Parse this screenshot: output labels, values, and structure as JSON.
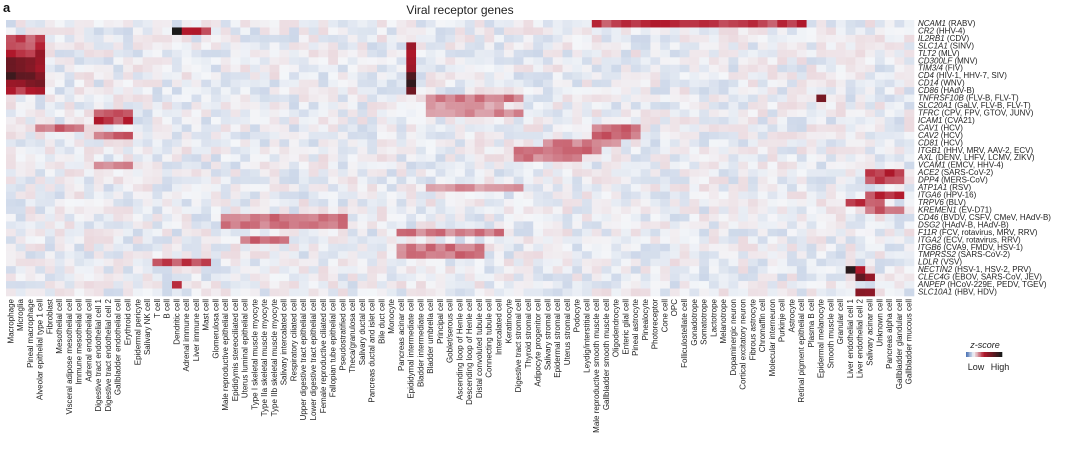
{
  "panel_letter": "a",
  "chart_data": {
    "type": "heatmap",
    "title": "Viral receptor genes",
    "rows": [
      {
        "gene": "NCAM1",
        "virus": " (RABV)"
      },
      {
        "gene": "CR2",
        "virus": " (HHV-4)"
      },
      {
        "gene": "IL2RB1",
        "virus": " (CDV)"
      },
      {
        "gene": "SLC1A1",
        "virus": " (SINV)"
      },
      {
        "gene": "TLT2",
        "virus": " (MLV)"
      },
      {
        "gene": "CD300LF",
        "virus": " (MNV)"
      },
      {
        "gene": "TIM3/4",
        "virus": " (FIV)"
      },
      {
        "gene": "CD4",
        "virus": " (HIV-1, HHV-7, SIV)"
      },
      {
        "gene": "CD14",
        "virus": " (WNV)"
      },
      {
        "gene": "CD86",
        "virus": " (HAdV-B)"
      },
      {
        "gene": "TNFRSF10B",
        "virus": " (FLV-B, FLV-T)"
      },
      {
        "gene": "SLC20A1",
        "virus": " (GaLV, FLV-B, FLV-T)"
      },
      {
        "gene": "TFRC",
        "virus": " (CPV, FPV, GTOV, JUNV)"
      },
      {
        "gene": "ICAM1",
        "virus": " (CVA21)"
      },
      {
        "gene": "CAV1",
        "virus": " (HCV)"
      },
      {
        "gene": "CAV2",
        "virus": " (HCV)"
      },
      {
        "gene": "CD81",
        "virus": " (HCV)"
      },
      {
        "gene": "ITGB1",
        "virus": " (HHV, MRV, AAV-2, ECV)"
      },
      {
        "gene": "AXL",
        "virus": " (DENV, LHFV, LCMV, ZIKV)"
      },
      {
        "gene": "VCAM1",
        "virus": " (EMCV, HHV-4)"
      },
      {
        "gene": "ACE2",
        "virus": " (SARS-CoV-2)"
      },
      {
        "gene": "DPP4",
        "virus": " (MERS-CoV)"
      },
      {
        "gene": "ATP1A1",
        "virus": " (RSV)"
      },
      {
        "gene": "ITGA6",
        "virus": " (HPV-16)"
      },
      {
        "gene": "TRPV6",
        "virus": " (BLV)"
      },
      {
        "gene": "KREMEN1",
        "virus": " (EV-D71)"
      },
      {
        "gene": "CD46",
        "virus": " (BVDV, CSFV, CMeV, HAdV-B)"
      },
      {
        "gene": "DSG2",
        "virus": " (HAdV-B, HAdV-B)"
      },
      {
        "gene": "F11R",
        "virus": " (FCV, rotavirus, MRV, RRV)"
      },
      {
        "gene": "ITGA2",
        "virus": " (ECV, rotavirus, RRV)"
      },
      {
        "gene": "ITGB6",
        "virus": " (CVA9, FMDV, HSV-1)"
      },
      {
        "gene": "TMPRSS2",
        "virus": " (SARS-CoV-2)"
      },
      {
        "gene": "LDLR",
        "virus": " (VSV)"
      },
      {
        "gene": "NECTIN2",
        "virus": " (HSV-1, HSV-2, PRV)"
      },
      {
        "gene": "CLEC4G",
        "virus": " (EBOV, SARS-CoV, JEV)"
      },
      {
        "gene": "ANPEP",
        "virus": " (HCoV-229E, PEDV, TGEV)"
      },
      {
        "gene": "SLC10A1",
        "virus": " (HBV, HDV)"
      }
    ],
    "columns": [
      "Macrophage",
      "Microglia",
      "Pineal macrophage",
      "Alveolar epithelial type 1 cell",
      "Fibroblast",
      "Mesothelial cell",
      "Visceral adipose mesothelial cell",
      "Immune mesothelial cell",
      "Adrenal endothelial cell",
      "Digestive tract endothelial cell 1",
      "Digestive tract endothelial cell 2",
      "Gallbladder endothelial cell",
      "Erythroid cell",
      "Epidermal pericyte",
      "Salivary NK cell",
      "T cell",
      "B cell",
      "Dendritic cell",
      "Adrenal immune cell",
      "Liver immune cell",
      "Mast cell",
      "Glomerulosa cell",
      "Male reproductive epithelial cell",
      "Epididymis stereociliated cell",
      "Uterus luminal epithelial cell",
      "Type I skeletal muscle myocyte",
      "Type IIa skeletal muscle myocyte",
      "Type IIb skeletal muscle myocyte",
      "Salivary intercalated cell",
      "Respiratory ciliated cell",
      "Upper digestive tract epithelial cell",
      "Lower digestive tract epithelial cell",
      "Female reproductive ciliated cell",
      "Fallopian tube epithelial cell",
      "Pseudostratified cell",
      "Theca/granulosa cell",
      "Salivary ductal cell",
      "Pancreas ductal and islet cell",
      "Bile duct cell",
      "Monocyte",
      "Pancreas acinar cell",
      "Epididymal intermediate cell",
      "Bladder intermediate cell",
      "Bladder umbrella cell",
      "Principal cell",
      "Goblet/serous cell",
      "Ascending loop of Henle cell",
      "Descending loop of Henle cell",
      "Distal convoluted tubule cell",
      "Connecting tubule cell",
      "Intercalated cell",
      "Keratinocyte",
      "Digestive tract stromal cell",
      "Thyroid stromal cell",
      "Adipocyte progenitor cell",
      "Salivary stromal cell",
      "Epidermal stromal cell",
      "Uterus stromal cell",
      "Podocyte",
      "Leydig/interstitial cell",
      "Male reproductive smooth muscle cell",
      "Gallbladder smooth muscle cell",
      "Oligodendrocyte",
      "Enteric glial cell",
      "Pineal astrocyte",
      "Pinealocyte",
      "Photoreceptor",
      "Cone cell",
      "OPC",
      "Folliculostellate cell",
      "Gonadotrope",
      "Somatotrope",
      "Lactotrope",
      "Melanotrope",
      "Dopaminergic neuron",
      "Cortical excitatory neuron",
      "Fibrous astrocyte",
      "Chromaffin cell",
      "Molecular interneuron",
      "Purkinje cell",
      "Astrocyte",
      "Retinal pigment epithelial cell",
      "Plasma B cell",
      "Epidermal melanocyte",
      "Smooth muscle cell",
      "Granular cell",
      "Liver endothelial cell 1",
      "Liver endothelial cell 2",
      "Salivary acinar cell",
      "Unknown cell",
      "Pancreas alpha cell",
      "Gallbladder glandular cell",
      "Gallbladder mucous cell"
    ],
    "color_scale": {
      "title": "z-score",
      "low_label": "Low",
      "high_label": "High",
      "low_color": "#2b5aa8",
      "mid_color": "#f4f6f9",
      "high_color": "#b2182b",
      "max_color": "#1a1a1a"
    },
    "z_range": [
      -2,
      8
    ],
    "hotspots": [
      [
        0,
        60,
        81,
        2.6
      ],
      [
        1,
        17,
        17,
        6.5
      ],
      [
        1,
        18,
        20,
        2.5
      ],
      [
        2,
        0,
        3,
        2.2
      ],
      [
        3,
        0,
        3,
        2.3
      ],
      [
        3,
        41,
        41,
        3.5
      ],
      [
        4,
        0,
        3,
        3.2
      ],
      [
        4,
        41,
        41,
        3.0
      ],
      [
        5,
        0,
        3,
        4.8
      ],
      [
        5,
        41,
        41,
        3.5
      ],
      [
        6,
        0,
        3,
        4.5
      ],
      [
        6,
        41,
        41,
        4.0
      ],
      [
        7,
        0,
        3,
        5.5
      ],
      [
        7,
        41,
        41,
        6.0
      ],
      [
        8,
        0,
        3,
        4.2
      ],
      [
        8,
        41,
        41,
        7.0
      ],
      [
        9,
        0,
        3,
        2.8
      ],
      [
        9,
        41,
        41,
        5.0
      ],
      [
        10,
        43,
        52,
        1.6
      ],
      [
        10,
        83,
        83,
        6.0
      ],
      [
        11,
        43,
        50,
        1.2
      ],
      [
        12,
        9,
        12,
        2.3
      ],
      [
        12,
        43,
        52,
        1.4
      ],
      [
        13,
        9,
        12,
        2.5
      ],
      [
        14,
        3,
        7,
        1.8
      ],
      [
        14,
        60,
        64,
        1.8
      ],
      [
        15,
        9,
        12,
        2.0
      ],
      [
        15,
        60,
        64,
        1.9
      ],
      [
        16,
        55,
        62,
        1.6
      ],
      [
        17,
        52,
        60,
        1.7
      ],
      [
        18,
        52,
        58,
        1.6
      ],
      [
        19,
        9,
        12,
        1.5
      ],
      [
        20,
        88,
        91,
        2.8
      ],
      [
        21,
        88,
        91,
        2.2
      ],
      [
        22,
        43,
        52,
        1.3
      ],
      [
        23,
        88,
        91,
        2.5
      ],
      [
        24,
        86,
        89,
        2.4
      ],
      [
        25,
        88,
        91,
        2.0
      ],
      [
        26,
        22,
        34,
        1.7
      ],
      [
        27,
        22,
        34,
        1.6
      ],
      [
        28,
        40,
        50,
        1.6
      ],
      [
        29,
        24,
        28,
        2.0
      ],
      [
        30,
        40,
        48,
        1.7
      ],
      [
        31,
        40,
        48,
        1.8
      ],
      [
        32,
        15,
        20,
        2.4
      ],
      [
        33,
        86,
        86,
        8.0
      ],
      [
        33,
        87,
        87,
        3.0
      ],
      [
        34,
        87,
        88,
        5.0
      ],
      [
        35,
        17,
        17,
        2.5
      ],
      [
        36,
        87,
        88,
        4.5
      ]
    ]
  }
}
